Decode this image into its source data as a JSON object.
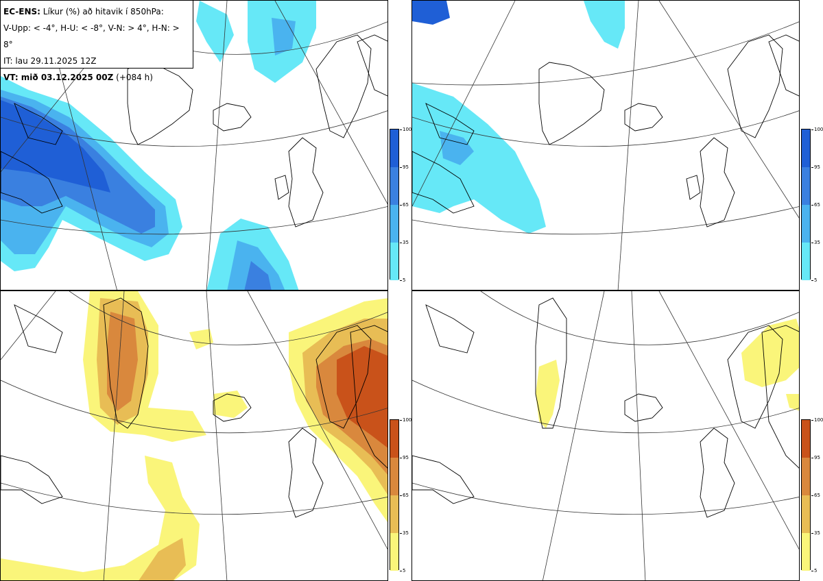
{
  "header": {
    "line1_bold": "EC-ENS:",
    "line1_rest": "Líkur (%) að hitavik í 850hPa:",
    "line2": "V-Upp: < -4°, H-U: < -8°, V-N: > 4°, H-N: > 8°",
    "line3": "IT: lau 29.11.2025 12Z",
    "line4_bold": "VT: mið 03.12.2025 00Z",
    "line4_rest": "(+084 h)"
  },
  "colorbars": {
    "cold": {
      "ticks": [
        "100",
        "95",
        "65",
        "35",
        "5"
      ],
      "colors": [
        "#1f5fd6",
        "#3a80e0",
        "#4ab3ef",
        "#66e8f7"
      ]
    },
    "warm": {
      "ticks": [
        "100",
        "95",
        "65",
        "35",
        "5"
      ],
      "colors": [
        "#c9521a",
        "#d9883d",
        "#e8bd55",
        "#faf57a"
      ]
    }
  },
  "panels": [
    {
      "id": "top-left",
      "label": "V-Upp"
    },
    {
      "id": "top-right",
      "label": "H-U"
    },
    {
      "id": "bottom-left",
      "label": "V-N"
    },
    {
      "id": "bottom-right",
      "label": "H-N"
    }
  ]
}
